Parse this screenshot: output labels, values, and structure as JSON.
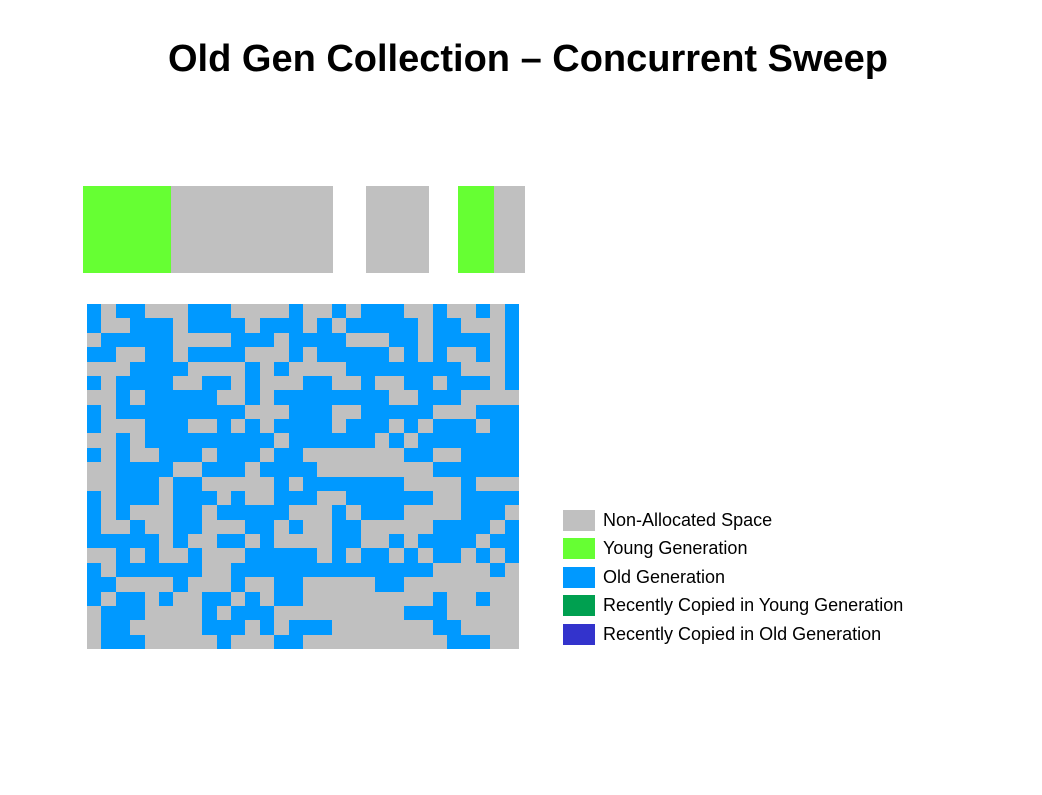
{
  "slide": {
    "title": "Old Gen Collection – Concurrent Sweep"
  },
  "colors": {
    "non_allocated": "#c0c0c0",
    "young": "#66ff33",
    "old": "#0099ff",
    "recent_young": "#00a050",
    "recent_old": "#3333cc"
  },
  "young_generation": {
    "eden_fill_fraction": 0.35,
    "survivor_0_fill_fraction": 0.0,
    "survivor_1_fill_fraction": 0.54
  },
  "old_generation": {
    "grid_rows": [
      "101100011100001001011100100101",
      "100111011110111010111110110001",
      "011111000011101111000110111101",
      "110011011110001011111010100101",
      "000111100001010000111111110001",
      "101111001101000110010011011101",
      "001011111001011111111001110000",
      "101111111110001110011111000111",
      "100011100101011110111010111011",
      "001011111111101111110101111111",
      "101001110111011000000011001111",
      "001111001110111100000000111111",
      "001110110000010111111100001000",
      "101110111010011100111111001111",
      "101000110111110001011100001110",
      "100100110001101001100000111101",
      "111110100110100001100101111011",
      "001010010001111101011010110101",
      "101111110011111111111111000010",
      "110000100010011000001100000000",
      "101101001101011000000000100100",
      "011100001011100000000011100000",
      "011000001110101110000000110000",
      "011100000100011000000000011100"
    ]
  },
  "legend": [
    {
      "label": "Non-Allocated Space",
      "color": "#c0c0c0"
    },
    {
      "label": "Young Generation",
      "color": "#66ff33"
    },
    {
      "label": "Old Generation",
      "color": "#0099ff"
    },
    {
      "label": "Recently Copied in Young Generation",
      "color": "#00a050"
    },
    {
      "label": "Recently Copied in Old Generation",
      "color": "#3333cc"
    }
  ]
}
